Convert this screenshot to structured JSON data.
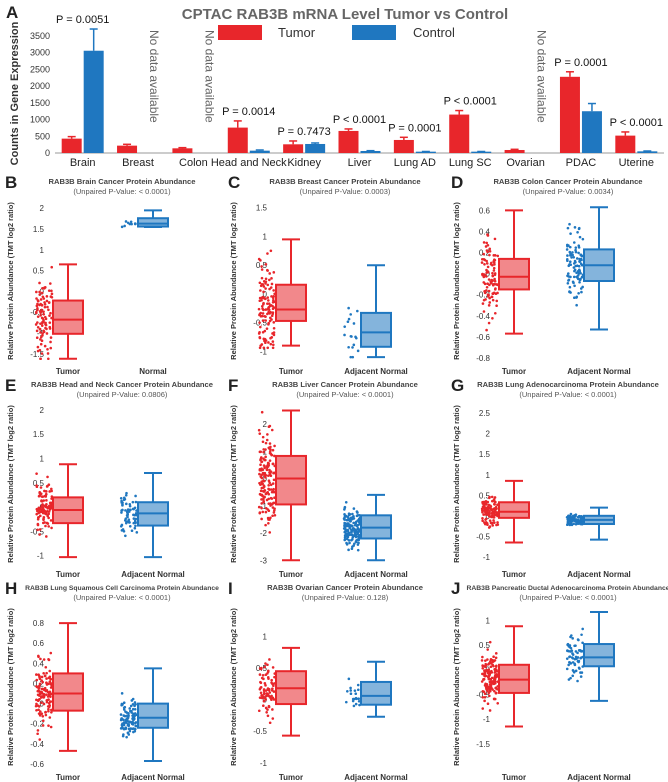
{
  "colors": {
    "tumor": "#e8262b",
    "control": "#1f77c0",
    "axis": "#222222",
    "grid": "#cccccc"
  },
  "panel_letters": [
    "A",
    "B",
    "C",
    "D",
    "E",
    "F",
    "G",
    "H",
    "I",
    "J"
  ],
  "chart_data": [
    {
      "id": "A",
      "type": "bar",
      "title": "CPTAC RAB3B mRNA Level Tumor vs Control",
      "ylabel": "Counts in Gene Expression",
      "ylim": [
        0,
        3800
      ],
      "yticks": [
        0,
        500,
        1000,
        1500,
        2000,
        2500,
        3000,
        3500
      ],
      "legend": [
        "Tumor",
        "Control"
      ],
      "no_data_text": "No data available",
      "categories": [
        "Brain",
        "Breast",
        "Colon",
        "Head and Neck",
        "Kidney",
        "Liver",
        "Lung AD",
        "Lung SC",
        "Ovarian",
        "PDAC",
        "Uterine"
      ],
      "series": [
        {
          "name": "Tumor",
          "values": [
            430,
            220,
            140,
            760,
            260,
            660,
            390,
            1150,
            90,
            2280,
            520
          ],
          "errors": [
            60,
            40,
            20,
            200,
            100,
            60,
            80,
            120,
            20,
            150,
            110
          ]
        },
        {
          "name": "Control",
          "values": [
            3060,
            null,
            null,
            70,
            270,
            60,
            40,
            40,
            null,
            1250,
            50
          ],
          "errors": [
            650,
            0,
            0,
            20,
            30,
            10,
            5,
            5,
            0,
            230,
            10
          ]
        }
      ],
      "pvalues": [
        "P = 0.0051",
        "",
        "",
        "P = 0.0014",
        "P = 0.7473",
        "P < 0.0001",
        "P = 0.0001",
        "P < 0.0001",
        "",
        "P = 0.0001",
        "P < 0.0001"
      ]
    },
    {
      "id": "B",
      "type": "box",
      "title": "RAB3B Brain Cancer Protein Abundance",
      "subtitle": "(Unpaired P-Value: < 0.0001)",
      "ylabel": "Relative Protein Abundance (TMT log2 ratio)",
      "ylim": [
        -1.65,
        2.15
      ],
      "yticks": [
        -1.5,
        -1,
        -0.5,
        0,
        0.5,
        1,
        1.5,
        2
      ],
      "categories": [
        "Tumor",
        "Normal"
      ],
      "boxes": [
        {
          "min": -1.62,
          "q1": -1.02,
          "median": -0.68,
          "q3": -0.22,
          "max": 0.65,
          "n": 100,
          "spread": 1.0
        },
        {
          "min": 1.55,
          "q1": 1.56,
          "median": 1.63,
          "q3": 1.76,
          "max": 1.95,
          "n": 10,
          "spread": 0.12
        }
      ]
    },
    {
      "id": "C",
      "type": "box",
      "title": "RAB3B Breast Cancer Protein Abundance",
      "subtitle": "(Unpaired P-Value: 0.0003)",
      "ylabel": "Relative Protein Abundance (TMT log2 ratio)",
      "ylim": [
        -1.15,
        1.6
      ],
      "yticks": [
        -1,
        -0.5,
        0,
        0.5,
        1,
        1.5
      ],
      "categories": [
        "Tumor",
        "Adjacent Normal"
      ],
      "boxes": [
        {
          "min": -0.9,
          "q1": -0.47,
          "median": -0.27,
          "q3": 0.16,
          "max": 0.95,
          "n": 120,
          "spread": 0.75
        },
        {
          "min": -1.1,
          "q1": -0.92,
          "median": -0.67,
          "q3": -0.33,
          "max": 0.5,
          "n": 18,
          "spread": 0.55
        }
      ]
    },
    {
      "id": "D",
      "type": "box",
      "title": "RAB3B Colon Cancer Protein Abundance",
      "subtitle": "(Unpaired P-Value: 0.0034)",
      "ylabel": "Relative Protein Abundance (TMT log2 ratio)",
      "ylim": [
        -0.82,
        0.68
      ],
      "yticks": [
        -0.8,
        -0.6,
        -0.4,
        -0.2,
        0,
        0.2,
        0.4,
        0.6
      ],
      "categories": [
        "Tumor",
        "Adjacent Normal"
      ],
      "boxes": [
        {
          "min": -0.57,
          "q1": -0.15,
          "median": -0.03,
          "q3": 0.14,
          "max": 0.6,
          "n": 100,
          "spread": 0.35
        },
        {
          "min": -0.53,
          "q1": -0.07,
          "median": 0.08,
          "q3": 0.23,
          "max": 0.63,
          "n": 100,
          "spread": 0.3
        }
      ]
    },
    {
      "id": "E",
      "type": "box",
      "title": "RAB3B Head and Neck Cancer Protein Abundance",
      "subtitle": "(Unpaired P-Value: 0.0806)",
      "ylabel": "Relative Protein Abundance (TMT log2 ratio)",
      "ylim": [
        -1.15,
        2.1
      ],
      "yticks": [
        -1,
        -0.5,
        0,
        0.5,
        1,
        1.5,
        2
      ],
      "categories": [
        "Tumor",
        "Adjacent Normal"
      ],
      "boxes": [
        {
          "min": -1.03,
          "q1": -0.33,
          "median": -0.06,
          "q3": 0.2,
          "max": 0.88,
          "n": 110,
          "spread": 0.5
        },
        {
          "min": -1.03,
          "q1": -0.38,
          "median": -0.13,
          "q3": 0.1,
          "max": 0.7,
          "n": 70,
          "spread": 0.4
        }
      ]
    },
    {
      "id": "F",
      "type": "box",
      "title": "RAB3B Liver Cancer Protein Abundance",
      "subtitle": "(Unpaired P-Value: < 0.0001)",
      "ylabel": "Relative Protein Abundance (TMT log2 ratio)",
      "ylim": [
        -3.1,
        2.7
      ],
      "yticks": [
        -3,
        -2,
        -1,
        0,
        1,
        2
      ],
      "categories": [
        "Tumor",
        "Adjacent Normal"
      ],
      "boxes": [
        {
          "min": -3.0,
          "q1": -0.95,
          "median": 0.0,
          "q3": 0.83,
          "max": 2.5,
          "n": 160,
          "spread": 1.5
        },
        {
          "min": -3.0,
          "q1": -2.2,
          "median": -1.8,
          "q3": -1.35,
          "max": -0.6,
          "n": 150,
          "spread": 0.6
        }
      ]
    },
    {
      "id": "G",
      "type": "box",
      "title": "RAB3B Lung Adenocarcinoma Protein Abundance",
      "subtitle": "(Unpaired P-Value: < 0.0001)",
      "ylabel": "Relative Protein Abundance (TMT log2 ratio)",
      "ylim": [
        -1.15,
        2.7
      ],
      "yticks": [
        -1,
        -0.5,
        0,
        0.5,
        1,
        1.5,
        2,
        2.5
      ],
      "categories": [
        "Tumor",
        "Adjacent Normal"
      ],
      "boxes": [
        {
          "min": -0.65,
          "q1": -0.05,
          "median": 0.1,
          "q3": 0.33,
          "max": 0.85,
          "n": 110,
          "spread": 0.35
        },
        {
          "min": -0.58,
          "q1": -0.2,
          "median": -0.1,
          "q3": 0.0,
          "max": 0.2,
          "n": 100,
          "spread": 0.12
        }
      ]
    },
    {
      "id": "H",
      "type": "box",
      "title": "RAB3B Lung Squamous Cell Carcinoma Protein Abundance",
      "subtitle": "(Unpaired P-Value: < 0.0001)",
      "ylabel": "Relative Protein Abundance (TMT log2 ratio)",
      "ylim": [
        -0.62,
        0.95
      ],
      "yticks": [
        -0.6,
        -0.4,
        -0.2,
        0,
        0.2,
        0.4,
        0.6,
        0.8
      ],
      "categories": [
        "Tumor",
        "Adjacent Normal"
      ],
      "boxes": [
        {
          "min": -0.47,
          "q1": -0.07,
          "median": 0.1,
          "q3": 0.3,
          "max": 0.8,
          "n": 120,
          "spread": 0.3
        },
        {
          "min": -0.57,
          "q1": -0.24,
          "median": -0.14,
          "q3": 0.0,
          "max": 0.35,
          "n": 100,
          "spread": 0.15
        }
      ]
    },
    {
      "id": "I",
      "type": "box",
      "title": "RAB3B Ovarian Cancer Protein Abundance",
      "subtitle": "(Unpaired P-Value: 0.128)",
      "ylabel": "Relative Protein Abundance (TMT log2 ratio)",
      "ylim": [
        -1.05,
        1.45
      ],
      "yticks": [
        -1,
        -0.5,
        0,
        0.5,
        1
      ],
      "categories": [
        "Tumor",
        "Adjacent Normal"
      ],
      "boxes": [
        {
          "min": -0.57,
          "q1": -0.07,
          "median": 0.18,
          "q3": 0.45,
          "max": 0.82,
          "n": 80,
          "spread": 0.4
        },
        {
          "min": -0.27,
          "q1": -0.08,
          "median": 0.06,
          "q3": 0.28,
          "max": 0.6,
          "n": 20,
          "spread": 0.3
        }
      ]
    },
    {
      "id": "J",
      "type": "box",
      "title": "RAB3B Pancreatic Ductal Adenocarcinoma Protein Abundance",
      "subtitle": "(Unpaired P-Value: < 0.0001)",
      "ylabel": "Relative Protein Abundance (TMT log2 ratio)",
      "ylim": [
        -1.95,
        1.25
      ],
      "yticks": [
        -1.5,
        -1,
        -0.5,
        0,
        0.5,
        1
      ],
      "categories": [
        "Tumor",
        "Adjacent Normal"
      ],
      "boxes": [
        {
          "min": -1.15,
          "q1": -0.47,
          "median": -0.2,
          "q3": 0.1,
          "max": 0.88,
          "n": 140,
          "spread": 0.45
        },
        {
          "min": -0.63,
          "q1": 0.07,
          "median": 0.25,
          "q3": 0.52,
          "max": 1.17,
          "n": 70,
          "spread": 0.45
        }
      ]
    }
  ]
}
